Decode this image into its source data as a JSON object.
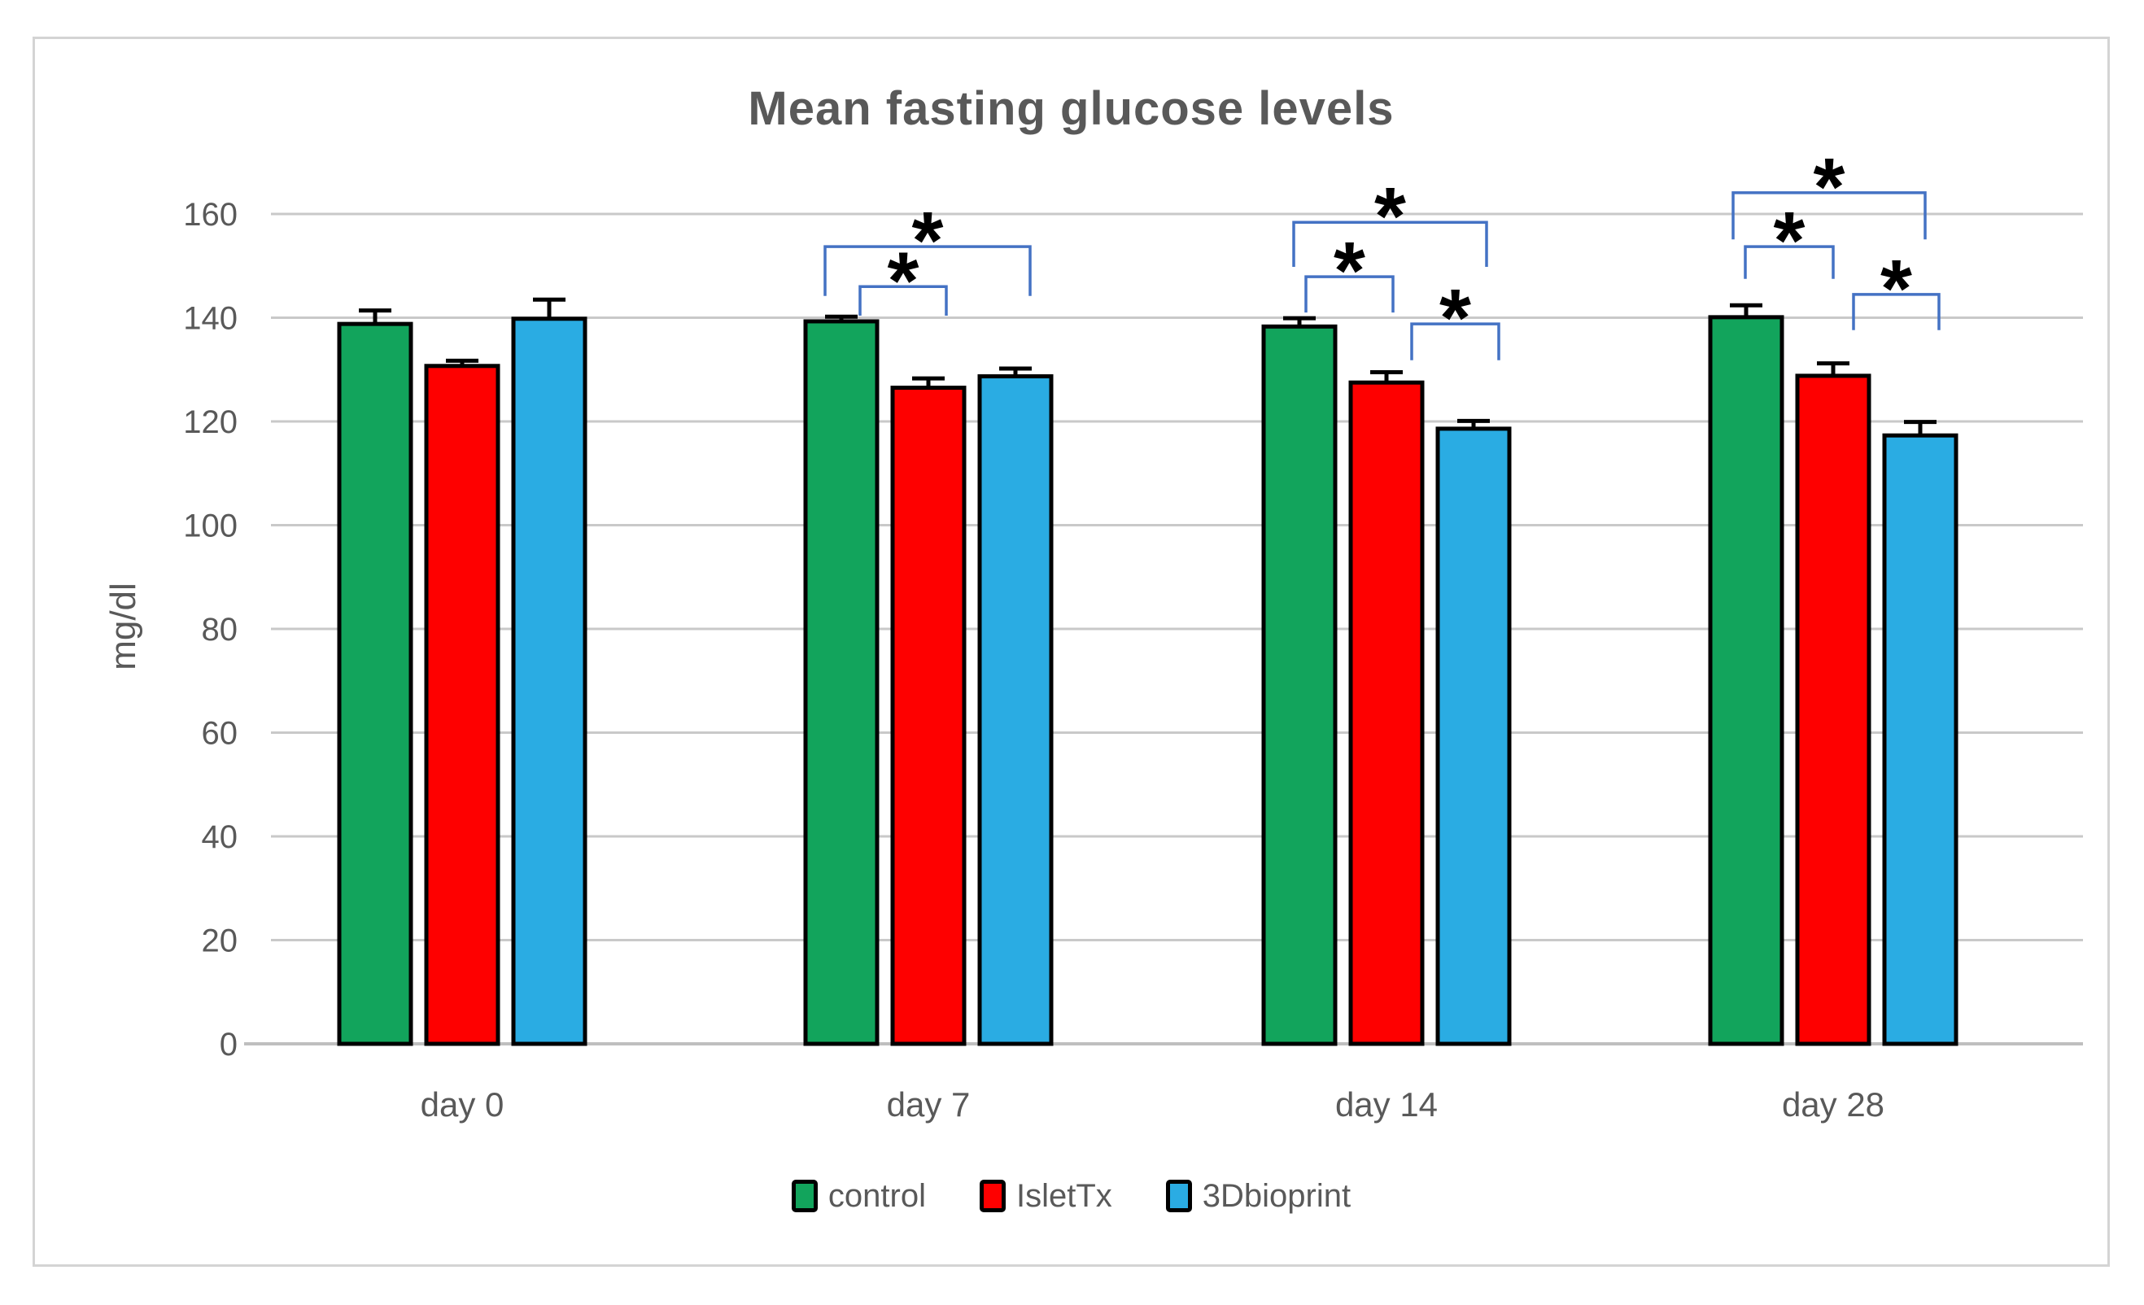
{
  "colors": {
    "gridline": "#c9c9c9",
    "axis_line": "#bfbfbf",
    "text": "#595959",
    "title": "#595959",
    "frame_border": "#d4d4d4",
    "bracket": "#4472c4",
    "error_bar": "#000000",
    "bar_border": "#000000"
  },
  "chart_data": {
    "type": "bar",
    "title": "Mean fasting glucose levels",
    "ylabel": "mg/dl",
    "xlabel": "",
    "categories": [
      "day 0",
      "day 7",
      "day 14",
      "day 28"
    ],
    "y_axis": {
      "min": 0,
      "max": 160,
      "step": 20,
      "ticks": [
        0,
        20,
        40,
        60,
        80,
        100,
        120,
        140,
        160
      ]
    },
    "grid": true,
    "legend_position": "bottom",
    "series": [
      {
        "name": "control",
        "color": "#12a45c",
        "values": [
          138.8,
          139.3,
          138.3,
          140.1
        ],
        "errors": [
          2.6,
          0.9,
          1.6,
          2.3
        ]
      },
      {
        "name": "IsletTx",
        "color": "#fe0000",
        "values": [
          130.7,
          126.5,
          127.5,
          128.8
        ],
        "errors": [
          1.0,
          1.8,
          2.0,
          2.4
        ]
      },
      {
        "name": "3Dbioprint",
        "color": "#2aace3",
        "values": [
          139.8,
          128.7,
          118.6,
          117.3
        ],
        "errors": [
          3.7,
          1.5,
          1.5,
          2.6
        ]
      }
    ],
    "annotations": {
      "significance_brackets": [
        {
          "group": 1,
          "from": 0,
          "to": 1,
          "dx1": 23,
          "dx2": 22,
          "top": 146.0,
          "leg1": 140.4,
          "leg2": 140.4,
          "label": "*"
        },
        {
          "group": 1,
          "from": 0,
          "to": 2,
          "dx1": -20,
          "dx2": 18,
          "top": 153.7,
          "leg1": 144.2,
          "leg2": 144.2,
          "label": "*"
        },
        {
          "group": 2,
          "from": 0,
          "to": 1,
          "dx1": 8,
          "dx2": 8,
          "top": 147.9,
          "leg1": 141.0,
          "leg2": 141.0,
          "label": "*"
        },
        {
          "group": 2,
          "from": 0,
          "to": 2,
          "dx1": -7,
          "dx2": 16,
          "top": 158.4,
          "leg1": 149.8,
          "leg2": 149.8,
          "label": "*"
        },
        {
          "group": 2,
          "from": 1,
          "to": 2,
          "dx1": 31,
          "dx2": 31,
          "top": 138.8,
          "leg1": 131.8,
          "leg2": 131.8,
          "label": "*"
        },
        {
          "group": 3,
          "from": 0,
          "to": 1,
          "dx1": -1,
          "dx2": 0,
          "top": 153.7,
          "leg1": 147.5,
          "leg2": 147.5,
          "label": "*"
        },
        {
          "group": 3,
          "from": 0,
          "to": 2,
          "dx1": -16,
          "dx2": 6,
          "top": 164.1,
          "leg1": 155.1,
          "leg2": 155.1,
          "label": "*"
        },
        {
          "group": 3,
          "from": 1,
          "to": 2,
          "dx1": 25,
          "dx2": 23,
          "top": 144.5,
          "leg1": 137.6,
          "leg2": 137.6,
          "label": "*"
        }
      ]
    }
  },
  "legend": {
    "items": [
      {
        "label": "control"
      },
      {
        "label": "IsletTx"
      },
      {
        "label": "3Dbioprint"
      }
    ]
  }
}
